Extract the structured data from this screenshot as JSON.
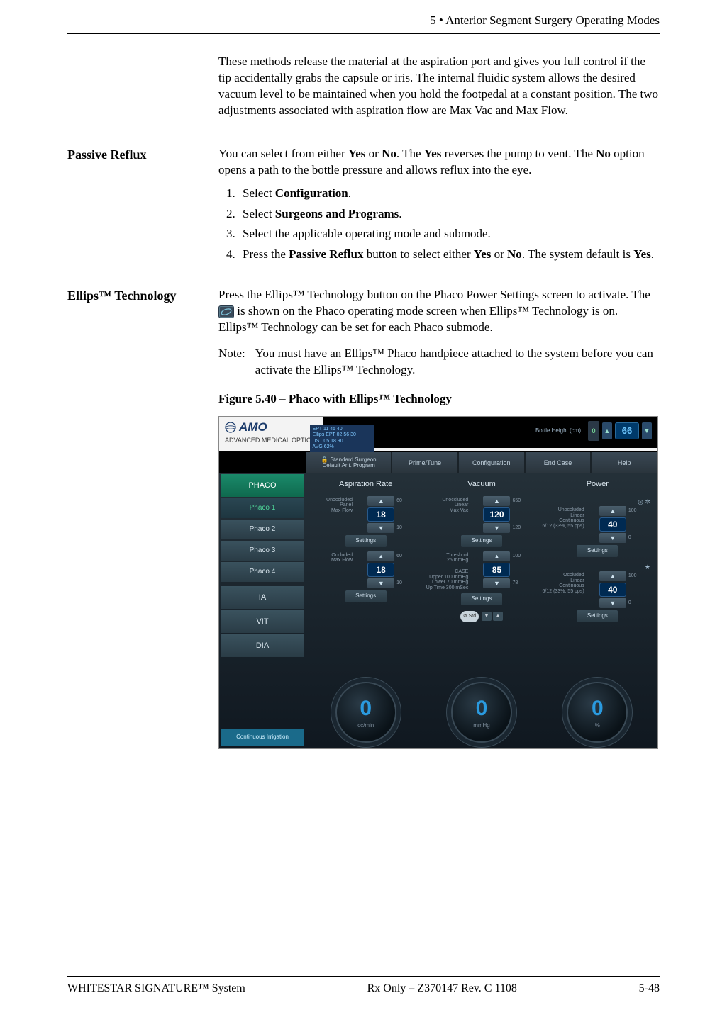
{
  "header": {
    "chapter": "5",
    "title": "• Anterior Segment Surgery Operating Modes"
  },
  "intro": "These methods release the material at the aspiration port and gives you full control if the tip accidentally grabs the capsule or iris. The internal fluidic system allows the desired vacuum level to be maintained when you hold the footpedal at a constant position. The two adjustments associated with aspiration flow are Max Vac and Max Flow.",
  "sections": {
    "passive": {
      "heading": "Passive Reflux",
      "p_pre": "You can select from either ",
      "yes1": "Yes",
      "p_mid1": " or ",
      "no1": "No",
      "p_mid2": ". The ",
      "yes2": "Yes",
      "p_mid3": " reverses the pump to vent. The ",
      "no2": "No",
      "p_post": " option opens a path to the bottle pressure and allows reflux into the eye.",
      "steps": [
        {
          "pre": "Select ",
          "b": "Configuration",
          "post": "."
        },
        {
          "pre": "Select ",
          "b": "Surgeons and Programs",
          "post": "."
        },
        {
          "pre": "Select the applicable operating mode and submode.",
          "b": "",
          "post": ""
        },
        {
          "pre": "Press the ",
          "b": "Passive Reflux",
          "mid": " button to select either ",
          "b2": "Yes",
          "mid2": " or ",
          "b3": "No",
          "mid3": ". The system default is ",
          "b4": "Yes",
          "post": "."
        }
      ]
    },
    "ellips": {
      "heading": "Ellips™ Technology",
      "p1a": "Press the Ellips™ Technology button on the Phaco Power Settings screen to activate. The ",
      "p1b": " is shown on the Phaco operating mode screen when Ellips™ Technology is on. Ellips™ Technology can be set for each Phaco submode.",
      "note_label": "Note:",
      "note": "You must have an Ellips™ Phaco handpiece attached to the system before you can activate the Ellips™ Technology.",
      "figure_title": "Figure 5.40 – Phaco with Ellips™ Technology"
    }
  },
  "figure": {
    "logo": "AMO",
    "logo_sub": "ADVANCED MEDICAL OPTICS",
    "stats": [
      "EPT   11 45 40",
      "Ellips EPT  02 56 30",
      "UST   05 18 90",
      "AVG   62%"
    ],
    "bottle_height": {
      "label": "Bottle Height (cm)",
      "indicator": "0",
      "value": "66"
    },
    "tabs": [
      {
        "l1": "Standard Surgeon",
        "l2": "Default Ant. Program",
        "lock": true
      },
      {
        "l1": "Prime/Tune"
      },
      {
        "l1": "Configuration"
      },
      {
        "l1": "End Case"
      },
      {
        "l1": "Help"
      }
    ],
    "side": {
      "phaco": "PHACO",
      "items": [
        "Phaco 1",
        "Phaco 2",
        "Phaco 3",
        "Phaco 4"
      ],
      "active_index": 0,
      "modes": [
        "IA",
        "VIT",
        "DIA"
      ],
      "bottom": "Continuous Irrigation"
    },
    "cols": [
      {
        "title": "Aspiration Rate",
        "blocks": [
          {
            "l": [
              "Unoccluded",
              "Panel",
              "Max Flow"
            ],
            "up": "60",
            "val": "18",
            "dn": "10"
          },
          {
            "l": [
              "Occluded",
              "Max Flow"
            ],
            "up": "60",
            "val": "18",
            "dn": "10"
          }
        ],
        "dial": {
          "val": "0",
          "unit": "cc/min"
        }
      },
      {
        "title": "Vacuum",
        "blocks": [
          {
            "l": [
              "Unoccluded",
              "Linear",
              "Max Vac"
            ],
            "up": "650",
            "val": "120",
            "dn": "120"
          },
          {
            "l": [
              "Threshold",
              "25 mmHg",
              "",
              "CASE",
              "Upper 100 mmHg",
              "Lower 70 mmHg",
              "Up Time 300 mSec"
            ],
            "up": "100",
            "val": "85",
            "dn": "78"
          }
        ],
        "dial": {
          "val": "0",
          "unit": "mmHg"
        },
        "std": "Std"
      },
      {
        "title": "Power",
        "blocks": [
          {
            "l": [
              "Unoccluded",
              "Linear",
              "Continuous",
              "6/12 (33%, 55 pps)"
            ],
            "up": "100",
            "val": "40",
            "dn": "0",
            "icons": true
          },
          {
            "l": [
              "Occluded",
              "Linear",
              "Continuous",
              "6/12 (33%, 55 pps)"
            ],
            "up": "100",
            "val": "40",
            "dn": "0",
            "star": true
          }
        ],
        "dial": {
          "val": "0",
          "unit": "%"
        }
      }
    ],
    "settings_label": "Settings"
  },
  "footer": {
    "left": "WHITESTAR SIGNATURE™ System",
    "center": "Rx Only – Z370147 Rev. C 1108",
    "right": "5-48"
  }
}
